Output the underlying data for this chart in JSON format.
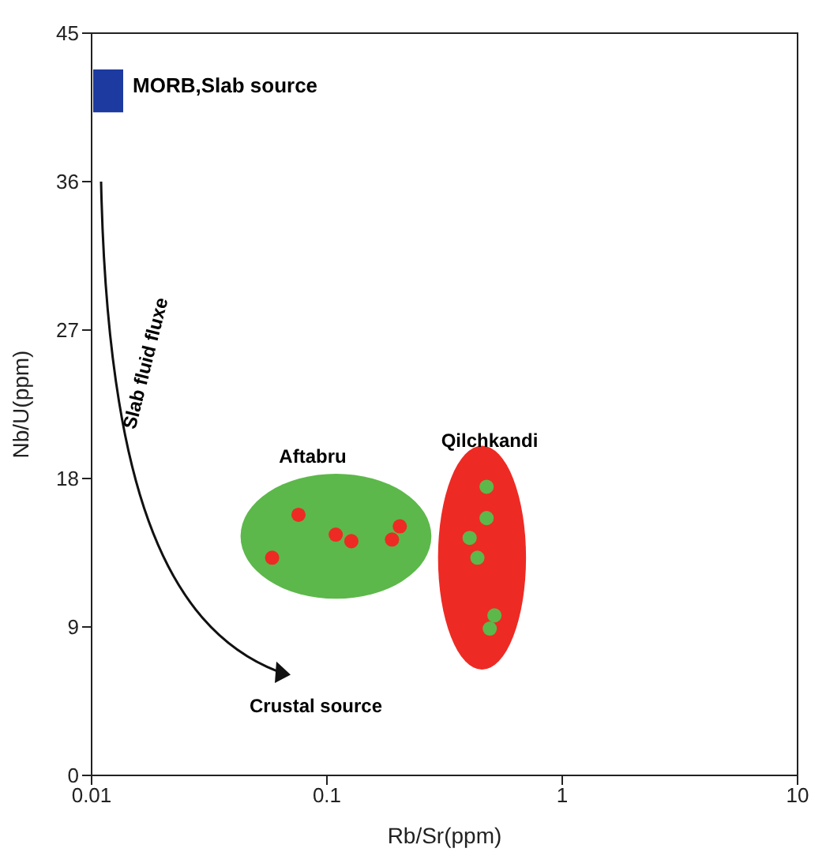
{
  "chart_data": {
    "type": "scatter",
    "xlabel": "Rb/Sr(ppm)",
    "ylabel": "Nb/U(ppm)",
    "log": "x",
    "xlim": [
      0.01,
      10
    ],
    "xticks": [
      0.01,
      0.1,
      1,
      10
    ],
    "ylim": [
      0,
      45
    ],
    "yticks": [
      0,
      9,
      18,
      27,
      36,
      45
    ],
    "marker": "circle",
    "series": [
      {
        "color": "#ee2a24",
        "x": [
          0.0757,
          0.0585,
          0.109,
          0.127,
          0.204,
          0.189
        ],
        "values": [
          15.8,
          13.2,
          14.6,
          14.2,
          15.1,
          14.3
        ]
      },
      {
        "color": "#5cb84a",
        "x": [
          0.477,
          0.477,
          0.404,
          0.436,
          0.515,
          0.492
        ],
        "values": [
          17.5,
          15.6,
          14.4,
          13.2,
          9.7,
          8.9
        ]
      }
    ],
    "annotations": [
      "MORB,Slab source",
      "Slab fluid fluxe",
      "Aftabru",
      "Qilchkandi",
      "Crustal source"
    ]
  }
}
